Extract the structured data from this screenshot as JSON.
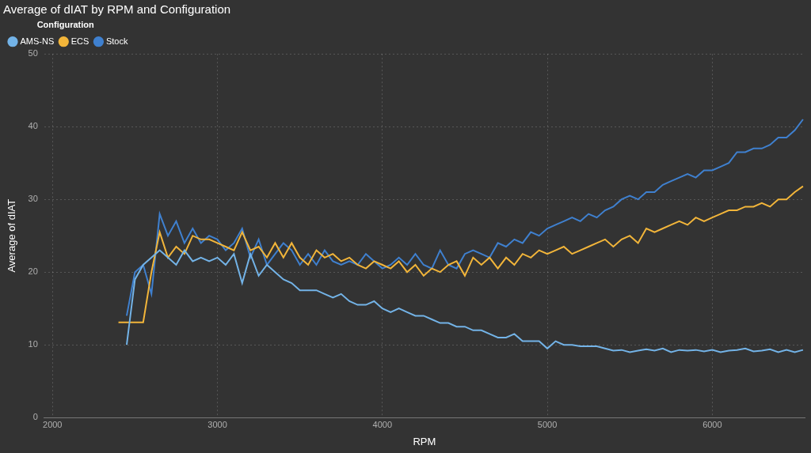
{
  "chart_data": {
    "type": "line",
    "title": "Average of dIAT by RPM and Configuration",
    "x_label": "RPM",
    "y_label": "Average of dIAT",
    "legend_title": "Configuration",
    "legend": "top",
    "grid": true,
    "xlim": [
      1950,
      6560
    ],
    "xticks": [
      2000,
      3000,
      4000,
      5000,
      6000
    ],
    "ylim": [
      0,
      50
    ],
    "yticks": [
      0,
      10,
      20,
      30,
      40,
      50
    ],
    "x": [
      2400,
      2450,
      2500,
      2550,
      2600,
      2650,
      2700,
      2750,
      2800,
      2850,
      2900,
      2950,
      3000,
      3050,
      3100,
      3150,
      3200,
      3250,
      3300,
      3350,
      3400,
      3450,
      3500,
      3550,
      3600,
      3650,
      3700,
      3750,
      3800,
      3850,
      3900,
      3950,
      4000,
      4050,
      4100,
      4150,
      4200,
      4250,
      4300,
      4350,
      4400,
      4450,
      4500,
      4550,
      4600,
      4650,
      4700,
      4750,
      4800,
      4850,
      4900,
      4950,
      5000,
      5050,
      5100,
      5150,
      5200,
      5250,
      5300,
      5350,
      5400,
      5450,
      5500,
      5550,
      5600,
      5650,
      5700,
      5750,
      5800,
      5850,
      5900,
      5950,
      6000,
      6050,
      6100,
      6150,
      6200,
      6250,
      6300,
      6350,
      6400,
      6450,
      6500,
      6550
    ],
    "series": [
      {
        "name": "AMS-NS",
        "color": "#73b3e7",
        "values": [
          null,
          10,
          19,
          21,
          22,
          23,
          22,
          21,
          23,
          21.5,
          22,
          21.5,
          22,
          21,
          22.5,
          18.5,
          22.5,
          19.5,
          21,
          20,
          19,
          18.5,
          17.5,
          17.5,
          17.5,
          17,
          16.5,
          17,
          16,
          15.5,
          15.5,
          16,
          15,
          14.5,
          15,
          14.5,
          14,
          14,
          13.5,
          13,
          13,
          12.5,
          12.5,
          12,
          12,
          11.5,
          11,
          11,
          11.5,
          10.5,
          10.5,
          10.5,
          9.5,
          10.5,
          10,
          10,
          9.8,
          9.8,
          9.8,
          9.5,
          9.2,
          9.3,
          9,
          9.2,
          9.4,
          9.2,
          9.5,
          9,
          9.3,
          9.2,
          9.3,
          9.1,
          9.3,
          9,
          9.2,
          9.3,
          9.5,
          9.1,
          9.2,
          9.4,
          9,
          9.3,
          9,
          9.3
        ]
      },
      {
        "name": "ECS",
        "color": "#f2b53a",
        "values": [
          13.1,
          13.1,
          13.1,
          13.1,
          20,
          25.5,
          22,
          23.5,
          22.5,
          25,
          24.5,
          24.5,
          24,
          23.5,
          23,
          25.5,
          23,
          23.5,
          22,
          24,
          22,
          24,
          22,
          21,
          23,
          22,
          22.5,
          21.5,
          22,
          21,
          20.5,
          21.5,
          21,
          20.5,
          21.5,
          20,
          21,
          19.5,
          20.5,
          20,
          21,
          21.5,
          19.5,
          22,
          21,
          22,
          20.5,
          22,
          21,
          22.5,
          22,
          23,
          22.5,
          23,
          23.5,
          22.5,
          23,
          23.5,
          24,
          24.5,
          23.5,
          24.5,
          25,
          24,
          26,
          25.5,
          26,
          26.5,
          27,
          26.5,
          27.5,
          27,
          27.5,
          28,
          28.5,
          28.5,
          29,
          29,
          29.5,
          29,
          30,
          30,
          31,
          31.8
        ]
      },
      {
        "name": "Stock",
        "color": "#3f80cf",
        "values": [
          null,
          14,
          20,
          21,
          17,
          28,
          25,
          27,
          24,
          26,
          24,
          25,
          24.5,
          23,
          24,
          26,
          22,
          24.5,
          21,
          22.5,
          24,
          23,
          21,
          22.5,
          21,
          23,
          21.5,
          21,
          21.5,
          21,
          22.5,
          21.5,
          20.5,
          21,
          22,
          21,
          22.5,
          21,
          20.5,
          23,
          21,
          20.5,
          22.5,
          23,
          22.5,
          22,
          24,
          23.5,
          24.5,
          24,
          25.5,
          25,
          26,
          26.5,
          27,
          27.5,
          27,
          28,
          27.5,
          28.5,
          29,
          30,
          30.5,
          30,
          31,
          31,
          32,
          32.5,
          33,
          33.5,
          33,
          34,
          34,
          34.5,
          35,
          36.5,
          36.5,
          37,
          37,
          37.5,
          38.5,
          38.5,
          39.5,
          41
        ]
      }
    ]
  }
}
